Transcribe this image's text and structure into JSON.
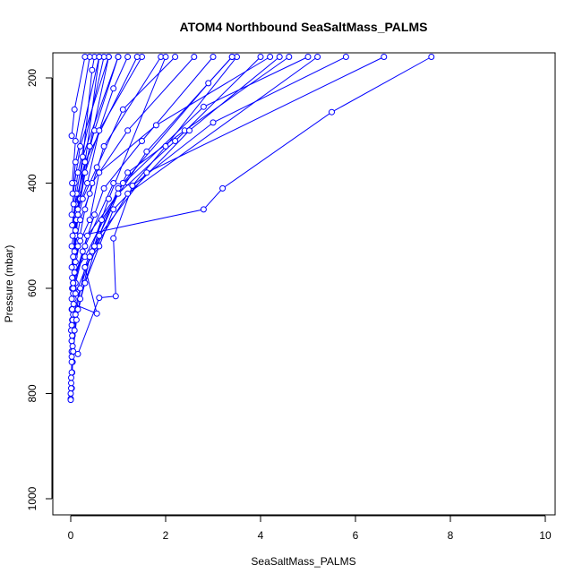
{
  "chart_data": {
    "type": "line",
    "title": "ATOM4 Northbound SeaSaltMass_PALMS",
    "xlabel": "SeaSaltMass_PALMS",
    "ylabel": "Pressure (mbar)",
    "xlim": [
      0,
      10
    ],
    "ylim": [
      1000,
      160
    ],
    "y_reversed": true,
    "grid": false,
    "x_ticks": [
      "0",
      "2",
      "4",
      "6",
      "8",
      "10"
    ],
    "y_ticks": [
      "200",
      "400",
      "600",
      "800",
      "1000"
    ],
    "line_color": "#0000ff",
    "series": [
      {
        "values": [
          [
            0.0,
            810
          ],
          [
            0.02,
            790
          ],
          [
            0.04,
            740
          ],
          [
            0.05,
            680
          ],
          [
            0.06,
            620
          ],
          [
            0.04,
            560
          ],
          [
            0.08,
            500
          ],
          [
            0.15,
            420
          ],
          [
            0.5,
            300
          ],
          [
            1.0,
            160
          ]
        ]
      },
      {
        "values": [
          [
            0.0,
            800
          ],
          [
            0.03,
            760
          ],
          [
            0.02,
            700
          ],
          [
            0.05,
            650
          ],
          [
            0.03,
            600
          ],
          [
            0.06,
            540
          ],
          [
            0.1,
            470
          ],
          [
            0.3,
            380
          ],
          [
            0.9,
            220
          ],
          [
            1.2,
            160
          ]
        ]
      },
      {
        "values": [
          [
            0.01,
            790
          ],
          [
            0.02,
            740
          ],
          [
            0.04,
            690
          ],
          [
            0.02,
            640
          ],
          [
            0.05,
            590
          ],
          [
            0.08,
            530
          ],
          [
            0.12,
            470
          ],
          [
            0.45,
            185
          ],
          [
            0.5,
            160
          ]
        ]
      },
      {
        "values": [
          [
            0.0,
            812
          ],
          [
            0.01,
            780
          ],
          [
            0.03,
            720
          ],
          [
            0.02,
            670
          ],
          [
            0.05,
            610
          ],
          [
            0.04,
            560
          ],
          [
            0.1,
            500
          ],
          [
            0.2,
            430
          ],
          [
            0.6,
            160
          ]
        ]
      },
      {
        "values": [
          [
            0.02,
            760
          ],
          [
            0.04,
            710
          ],
          [
            0.03,
            660
          ],
          [
            0.06,
            600
          ],
          [
            0.08,
            540
          ],
          [
            0.15,
            460
          ],
          [
            0.4,
            330
          ],
          [
            0.8,
            160
          ]
        ]
      },
      {
        "values": [
          [
            0.02,
            720
          ],
          [
            0.15,
            725
          ],
          [
            0.6,
            618
          ],
          [
            0.95,
            615
          ],
          [
            0.9,
            505
          ],
          [
            1.3,
            405
          ],
          [
            2.0,
            330
          ],
          [
            3.5,
            160
          ]
        ]
      },
      {
        "values": [
          [
            0.02,
            700
          ],
          [
            0.1,
            650
          ],
          [
            0.3,
            560
          ],
          [
            0.6,
            520
          ],
          [
            0.6,
            500
          ],
          [
            1.0,
            410
          ],
          [
            2.8,
            255
          ],
          [
            5.0,
            160
          ]
        ]
      },
      {
        "values": [
          [
            0.01,
            680
          ],
          [
            0.05,
            600
          ],
          [
            0.1,
            550
          ],
          [
            0.2,
            500
          ],
          [
            2.8,
            450
          ],
          [
            3.2,
            410
          ],
          [
            5.5,
            265
          ],
          [
            7.6,
            160
          ]
        ]
      },
      {
        "values": [
          [
            0.03,
            640
          ],
          [
            0.1,
            590
          ],
          [
            0.3,
            520
          ],
          [
            0.9,
            400
          ],
          [
            1.3,
            405
          ],
          [
            3.0,
            285
          ],
          [
            5.8,
            160
          ]
        ]
      },
      {
        "values": [
          [
            0.02,
            620
          ],
          [
            0.08,
            560
          ],
          [
            0.2,
            510
          ],
          [
            0.4,
            470
          ],
          [
            0.6,
            380
          ],
          [
            1.8,
            290
          ],
          [
            4.2,
            160
          ]
        ]
      },
      {
        "values": [
          [
            0.05,
            600
          ],
          [
            0.25,
            530
          ],
          [
            0.5,
            460
          ],
          [
            0.7,
            410
          ],
          [
            1.5,
            320
          ],
          [
            3.0,
            160
          ]
        ]
      },
      {
        "values": [
          [
            0.03,
            580
          ],
          [
            0.15,
            520
          ],
          [
            0.3,
            450
          ],
          [
            0.45,
            400
          ],
          [
            1.2,
            300
          ],
          [
            2.6,
            160
          ]
        ]
      },
      {
        "values": [
          [
            0.02,
            560
          ],
          [
            0.1,
            490
          ],
          [
            0.25,
            430
          ],
          [
            0.55,
            370
          ],
          [
            1.1,
            260
          ],
          [
            2.2,
            160
          ]
        ]
      },
      {
        "values": [
          [
            0.05,
            540
          ],
          [
            0.2,
            470
          ],
          [
            0.4,
            420
          ],
          [
            0.7,
            330
          ],
          [
            1.9,
            160
          ]
        ]
      },
      {
        "values": [
          [
            0.02,
            520
          ],
          [
            0.15,
            450
          ],
          [
            0.35,
            400
          ],
          [
            0.6,
            300
          ],
          [
            1.5,
            160
          ]
        ]
      },
      {
        "values": [
          [
            0.04,
            500
          ],
          [
            0.1,
            440
          ],
          [
            0.3,
            360
          ],
          [
            1.4,
            160
          ]
        ]
      },
      {
        "values": [
          [
            0.03,
            480
          ],
          [
            0.12,
            420
          ],
          [
            0.25,
            350
          ],
          [
            1.0,
            160
          ]
        ]
      },
      {
        "values": [
          [
            0.02,
            460
          ],
          [
            0.08,
            400
          ],
          [
            0.2,
            330
          ],
          [
            0.8,
            160
          ]
        ]
      },
      {
        "values": [
          [
            0.06,
            440
          ],
          [
            0.15,
            380
          ],
          [
            0.7,
            160
          ]
        ]
      },
      {
        "values": [
          [
            0.04,
            420
          ],
          [
            0.1,
            360
          ],
          [
            0.6,
            160
          ]
        ]
      },
      {
        "values": [
          [
            0.03,
            400
          ],
          [
            0.1,
            320
          ],
          [
            0.4,
            160
          ]
        ]
      },
      {
        "values": [
          [
            0.02,
            310
          ],
          [
            0.08,
            260
          ],
          [
            0.3,
            160
          ]
        ]
      },
      {
        "values": [
          [
            0.08,
            570
          ],
          [
            0.3,
            540
          ],
          [
            1.2,
            380
          ],
          [
            2.4,
            300
          ],
          [
            4.6,
            160
          ]
        ]
      },
      {
        "values": [
          [
            0.05,
            590
          ],
          [
            0.35,
            500
          ],
          [
            1.0,
            420
          ],
          [
            2.2,
            320
          ],
          [
            4.0,
            160
          ]
        ]
      },
      {
        "values": [
          [
            0.1,
            610
          ],
          [
            0.5,
            520
          ],
          [
            0.65,
            470
          ],
          [
            1.6,
            340
          ],
          [
            3.4,
            160
          ]
        ]
      },
      {
        "values": [
          [
            0.06,
            630
          ],
          [
            0.55,
            648
          ],
          [
            0.3,
            560
          ],
          [
            0.8,
            430
          ],
          [
            2.0,
            160
          ]
        ]
      },
      {
        "values": [
          [
            0.04,
            660
          ],
          [
            0.2,
            600
          ],
          [
            0.45,
            530
          ],
          [
            1.1,
            400
          ],
          [
            2.9,
            210
          ],
          [
            3.4,
            160
          ]
        ]
      },
      {
        "values": [
          [
            0.03,
            690
          ],
          [
            0.15,
            640
          ],
          [
            0.3,
            590
          ],
          [
            0.9,
            450
          ],
          [
            2.5,
            300
          ],
          [
            4.4,
            160
          ]
        ]
      },
      {
        "values": [
          [
            0.02,
            730
          ],
          [
            0.08,
            680
          ],
          [
            0.2,
            620
          ],
          [
            0.6,
            500
          ],
          [
            1.6,
            380
          ],
          [
            6.6,
            160
          ]
        ]
      },
      {
        "values": [
          [
            0.01,
            770
          ],
          [
            0.05,
            720
          ],
          [
            0.12,
            660
          ],
          [
            0.4,
            540
          ],
          [
            1.2,
            420
          ],
          [
            5.2,
            160
          ]
        ]
      }
    ]
  }
}
